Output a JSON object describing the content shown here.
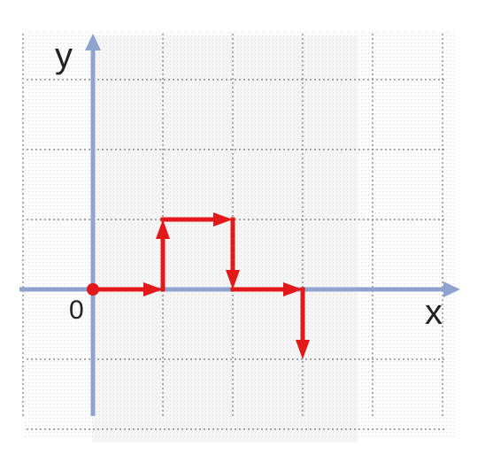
{
  "diagram": {
    "axis_labels": {
      "x": "x",
      "y": "y",
      "origin": "0"
    },
    "grid": {
      "x_min": -1,
      "x_max": 5,
      "y_min": -2,
      "y_max": 3
    },
    "origin_point": [
      0,
      0
    ],
    "path_points": [
      [
        0,
        0
      ],
      [
        1,
        0
      ],
      [
        1,
        1
      ],
      [
        2,
        1
      ],
      [
        2,
        0
      ],
      [
        3,
        0
      ],
      [
        3,
        -1
      ]
    ],
    "colors": {
      "axis": "#8fa3cf",
      "path": "#e31919",
      "grid": "#777777",
      "shade": "#e9e9e9"
    }
  }
}
